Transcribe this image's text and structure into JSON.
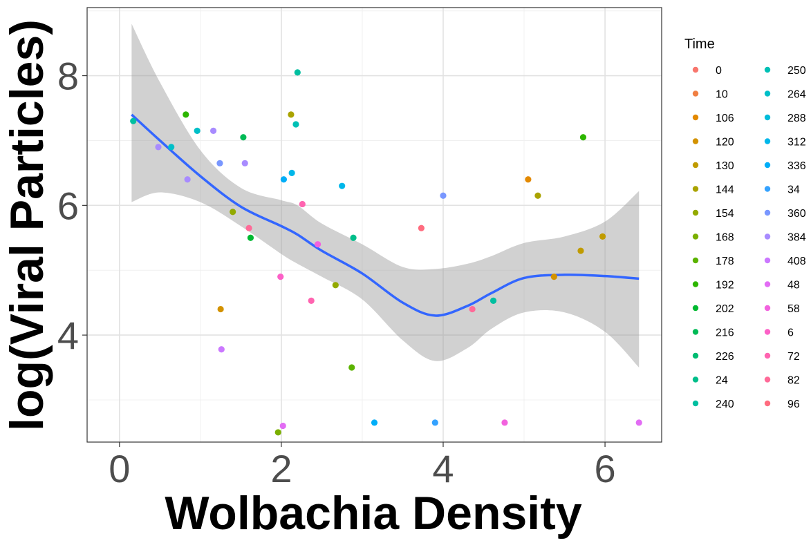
{
  "chart_data": {
    "type": "scatter",
    "xlabel": "Wolbachia Density",
    "ylabel": "log(Viral Particles)",
    "xlim": [
      -0.4,
      6.7
    ],
    "ylim": [
      2.35,
      9.05
    ],
    "x_ticks": [
      0,
      2,
      4,
      6
    ],
    "y_ticks": [
      4,
      6,
      8
    ],
    "x_tick_labels": [
      "0",
      "2",
      "4",
      "6"
    ],
    "y_tick_labels": [
      "4",
      "6",
      "8"
    ],
    "grid": true,
    "legend": {
      "title": "Time",
      "placement": "right",
      "entries": [
        {
          "label": "0",
          "color": "#F8766D"
        },
        {
          "label": "10",
          "color": "#F07F42"
        },
        {
          "label": "106",
          "color": "#E38900"
        },
        {
          "label": "120",
          "color": "#D39200"
        },
        {
          "label": "130",
          "color": "#C09B00"
        },
        {
          "label": "144",
          "color": "#AAA300"
        },
        {
          "label": "154",
          "color": "#93AA00"
        },
        {
          "label": "168",
          "color": "#7AAF00"
        },
        {
          "label": "178",
          "color": "#5BB300"
        },
        {
          "label": "192",
          "color": "#2DB600"
        },
        {
          "label": "202",
          "color": "#00B931"
        },
        {
          "label": "216",
          "color": "#00BA56"
        },
        {
          "label": "226",
          "color": "#00BC72"
        },
        {
          "label": "24",
          "color": "#00BE8A"
        },
        {
          "label": "240",
          "color": "#00BFA0"
        },
        {
          "label": "250",
          "color": "#00C0B5"
        },
        {
          "label": "264",
          "color": "#00BFC8"
        },
        {
          "label": "288",
          "color": "#00BCDA"
        },
        {
          "label": "312",
          "color": "#00B7EA"
        },
        {
          "label": "336",
          "color": "#00AEF8"
        },
        {
          "label": "34",
          "color": "#34A2FF"
        },
        {
          "label": "360",
          "color": "#7997FF"
        },
        {
          "label": "384",
          "color": "#A88BFF"
        },
        {
          "label": "408",
          "color": "#CB78FF"
        },
        {
          "label": "48",
          "color": "#E26CF4"
        },
        {
          "label": "58",
          "color": "#F262DE"
        },
        {
          "label": "6",
          "color": "#FC61C7"
        },
        {
          "label": "72",
          "color": "#FF64B0"
        },
        {
          "label": "82",
          "color": "#FF6A98"
        },
        {
          "label": "96",
          "color": "#FF6C7F"
        }
      ]
    },
    "points": [
      {
        "x": 0.17,
        "y": 7.3,
        "color": "#00BFA0"
      },
      {
        "x": 0.48,
        "y": 6.9,
        "color": "#A88BFF"
      },
      {
        "x": 0.64,
        "y": 6.9,
        "color": "#00BFC8"
      },
      {
        "x": 0.82,
        "y": 7.4,
        "color": "#2DB600"
      },
      {
        "x": 0.84,
        "y": 6.4,
        "color": "#A88BFF"
      },
      {
        "x": 0.96,
        "y": 7.15,
        "color": "#00BFC8"
      },
      {
        "x": 1.16,
        "y": 7.15,
        "color": "#A88BFF"
      },
      {
        "x": 1.24,
        "y": 6.65,
        "color": "#7997FF"
      },
      {
        "x": 1.25,
        "y": 4.4,
        "color": "#D39200"
      },
      {
        "x": 1.26,
        "y": 3.78,
        "color": "#CB78FF"
      },
      {
        "x": 1.4,
        "y": 5.9,
        "color": "#93AA00"
      },
      {
        "x": 1.53,
        "y": 7.05,
        "color": "#00BA56"
      },
      {
        "x": 1.55,
        "y": 6.65,
        "color": "#A88BFF"
      },
      {
        "x": 1.6,
        "y": 5.65,
        "color": "#FF6A98"
      },
      {
        "x": 1.62,
        "y": 5.5,
        "color": "#00B931"
      },
      {
        "x": 1.96,
        "y": 2.5,
        "color": "#7AAF00"
      },
      {
        "x": 1.99,
        "y": 4.9,
        "color": "#FC61C7"
      },
      {
        "x": 2.02,
        "y": 2.6,
        "color": "#E26CF4"
      },
      {
        "x": 2.03,
        "y": 6.4,
        "color": "#00AEF8"
      },
      {
        "x": 2.12,
        "y": 7.4,
        "color": "#AAA300"
      },
      {
        "x": 2.13,
        "y": 6.5,
        "color": "#00B7EA"
      },
      {
        "x": 2.18,
        "y": 7.25,
        "color": "#00C0B5"
      },
      {
        "x": 2.2,
        "y": 8.05,
        "color": "#00BFA0"
      },
      {
        "x": 2.26,
        "y": 6.02,
        "color": "#FF64B0"
      },
      {
        "x": 2.37,
        "y": 4.53,
        "color": "#FF64B0"
      },
      {
        "x": 2.45,
        "y": 5.4,
        "color": "#F262DE"
      },
      {
        "x": 2.67,
        "y": 4.77,
        "color": "#93AA00"
      },
      {
        "x": 2.75,
        "y": 6.3,
        "color": "#00B7EA"
      },
      {
        "x": 2.87,
        "y": 3.5,
        "color": "#5BB300"
      },
      {
        "x": 2.89,
        "y": 5.5,
        "color": "#00BE8A"
      },
      {
        "x": 3.15,
        "y": 2.65,
        "color": "#00AEF8"
      },
      {
        "x": 3.73,
        "y": 5.65,
        "color": "#FF6C7F"
      },
      {
        "x": 3.9,
        "y": 2.65,
        "color": "#34A2FF"
      },
      {
        "x": 4.0,
        "y": 6.15,
        "color": "#7997FF"
      },
      {
        "x": 4.36,
        "y": 4.4,
        "color": "#FF6A98"
      },
      {
        "x": 4.62,
        "y": 4.53,
        "color": "#00BFA0"
      },
      {
        "x": 4.76,
        "y": 2.65,
        "color": "#F262DE"
      },
      {
        "x": 5.05,
        "y": 6.4,
        "color": "#E38900"
      },
      {
        "x": 5.17,
        "y": 6.15,
        "color": "#AAA300"
      },
      {
        "x": 5.37,
        "y": 4.9,
        "color": "#D39200"
      },
      {
        "x": 5.7,
        "y": 5.3,
        "color": "#C09B00"
      },
      {
        "x": 5.73,
        "y": 7.05,
        "color": "#2DB600"
      },
      {
        "x": 5.97,
        "y": 5.52,
        "color": "#C09B00"
      },
      {
        "x": 6.42,
        "y": 2.65,
        "color": "#E26CF4"
      }
    ],
    "smooth": {
      "color": "#3366FF",
      "band_color": "#999999",
      "x": [
        0.15,
        0.5,
        1.0,
        1.5,
        2.0,
        2.2,
        2.5,
        3.0,
        3.5,
        3.9,
        4.3,
        4.6,
        5.0,
        5.5,
        6.0,
        6.42
      ],
      "y": [
        7.4,
        7.0,
        6.45,
        5.98,
        5.68,
        5.55,
        5.3,
        4.95,
        4.5,
        4.3,
        4.45,
        4.65,
        4.88,
        4.93,
        4.91,
        4.87
      ],
      "lower": [
        6.05,
        6.2,
        6.05,
        5.68,
        5.25,
        5.1,
        4.9,
        4.55,
        3.92,
        3.6,
        3.8,
        4.1,
        4.35,
        4.35,
        4.05,
        3.5
      ],
      "upper": [
        8.8,
        7.9,
        6.85,
        6.27,
        6.08,
        6.0,
        5.72,
        5.4,
        5.05,
        5.02,
        5.1,
        5.22,
        5.42,
        5.52,
        5.75,
        6.22
      ]
    }
  }
}
